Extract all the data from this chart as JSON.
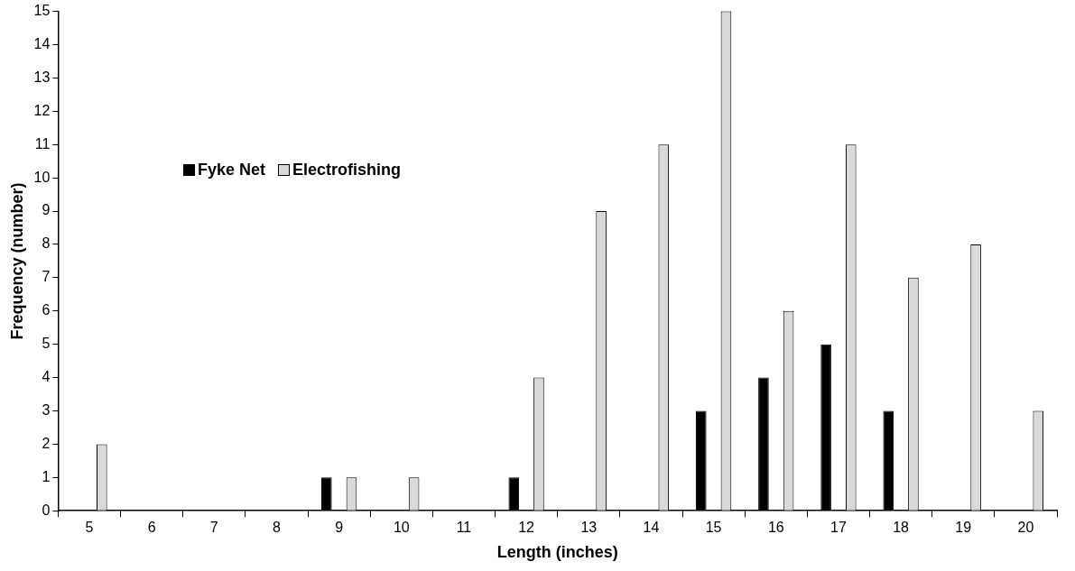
{
  "chart_data": {
    "type": "bar",
    "xlabel": "Length (inches)",
    "ylabel": "Frequency (number)",
    "categories": [
      "5",
      "6",
      "7",
      "8",
      "9",
      "10",
      "11",
      "12",
      "13",
      "14",
      "15",
      "16",
      "17",
      "18",
      "19",
      "20"
    ],
    "series": [
      {
        "name": "Fyke Net",
        "color": "#000000",
        "values": [
          0,
          0,
          0,
          0,
          1,
          0,
          0,
          1,
          0,
          0,
          3,
          4,
          5,
          3,
          0,
          0
        ]
      },
      {
        "name": "Electrofishing",
        "color": "#d9d9d9",
        "values": [
          2,
          0,
          0,
          0,
          1,
          1,
          0,
          4,
          9,
          11,
          15,
          6,
          11,
          7,
          8,
          3
        ]
      }
    ],
    "ylim": [
      0,
      15
    ],
    "yticks": [
      0,
      1,
      2,
      3,
      4,
      5,
      6,
      7,
      8,
      9,
      10,
      11,
      12,
      13,
      14,
      15
    ],
    "grid": false,
    "legend": "top left"
  }
}
